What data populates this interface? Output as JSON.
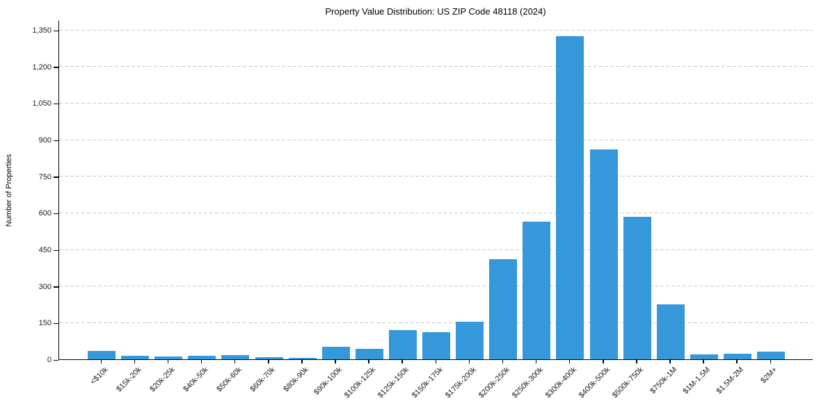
{
  "chart_data": {
    "type": "bar",
    "title": "Property Value Distribution: US ZIP Code 48118 (2024)",
    "xlabel": "",
    "ylabel": "Number of Properties",
    "categories": [
      "<$10k",
      "$15k-20k",
      "$20k-25k",
      "$40k-50k",
      "$50k-60k",
      "$60k-70k",
      "$80k-90k",
      "$90k-100k",
      "$100k-125k",
      "$125k-150k",
      "$150k-175k",
      "$175k-200k",
      "$200k-250k",
      "$250k-300k",
      "$300k-400k",
      "$400k-500k",
      "$500k-750k",
      "$750k-1M",
      "$1M-1.5M",
      "$1.5M-2M",
      "$2M+"
    ],
    "values": [
      35,
      15,
      12,
      14,
      18,
      10,
      5,
      50,
      43,
      120,
      110,
      155,
      410,
      565,
      1325,
      860,
      585,
      225,
      21,
      22,
      30
    ],
    "yticks": [
      0,
      150,
      300,
      450,
      600,
      750,
      900,
      1050,
      1200,
      1350
    ],
    "ylim": [
      0,
      1390
    ],
    "grid": true,
    "grid_style": "dashed",
    "legend": false,
    "x_tick_rotation_deg": 45,
    "colors": {
      "bar": "#3498db",
      "grid": "#c9c9c9",
      "axis": "#000000",
      "text": "#1a1a1a",
      "background": "#ffffff"
    }
  }
}
